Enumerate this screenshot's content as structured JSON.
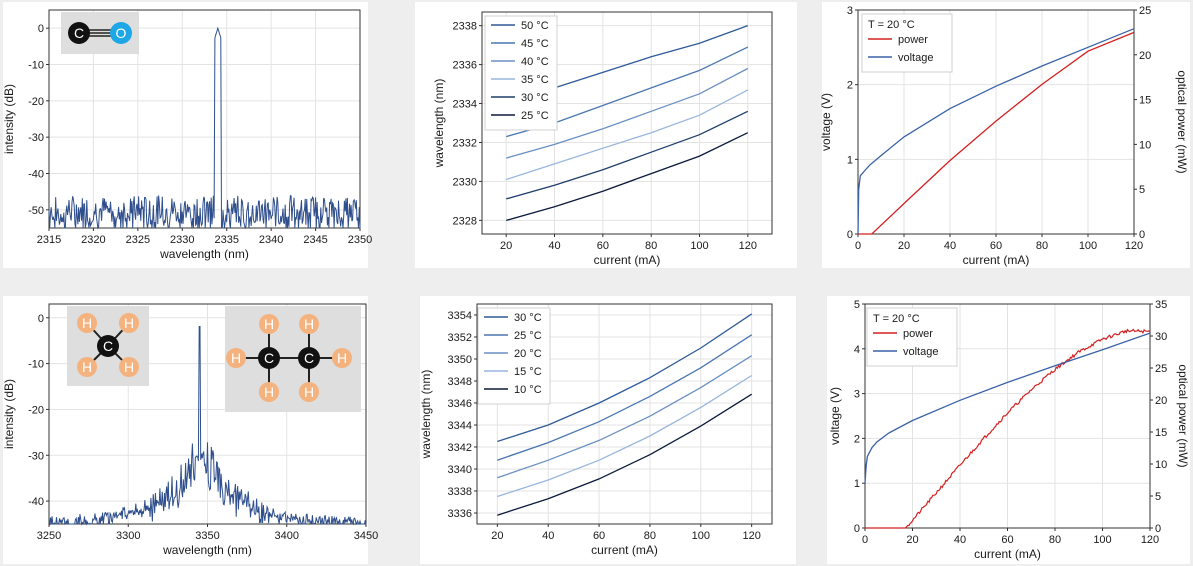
{
  "chart_data": [
    {
      "id": "co-spectrum",
      "type": "line",
      "xlabel": "wavelength (nm)",
      "ylabel": "intensity (dB)",
      "xlim": [
        2315,
        2350
      ],
      "ylim": [
        -55,
        5
      ],
      "xticks": [
        2315,
        2320,
        2325,
        2330,
        2335,
        2340,
        2345,
        2350
      ],
      "yticks": [
        0,
        -10,
        -20,
        -30,
        -40,
        -50
      ],
      "grid": true,
      "series": [
        {
          "color": "#2e4e8c",
          "noise_floor_db": -50,
          "peak_x": 2334.0,
          "peak_y": 0
        }
      ],
      "inset": {
        "molecule": "CO",
        "atoms": [
          {
            "label": "C",
            "color": "#111111"
          },
          {
            "label": "O",
            "color": "#1ea7e6"
          }
        ],
        "bond": "triple"
      }
    },
    {
      "id": "co-tuning",
      "type": "line",
      "xlabel": "current (mA)",
      "ylabel": "wavelength (nm)",
      "xlim": [
        10,
        130
      ],
      "ylim": [
        2327.3,
        2338.7
      ],
      "xticks": [
        20,
        40,
        60,
        80,
        100,
        120
      ],
      "yticks": [
        2328,
        2330,
        2332,
        2334,
        2336,
        2338
      ],
      "grid": true,
      "legend": "top-left",
      "x": [
        20,
        40,
        60,
        80,
        100,
        120
      ],
      "series": [
        {
          "name": "50 °C",
          "color": "#2e5a98",
          "values": [
            2333.9,
            2334.8,
            2335.6,
            2336.4,
            2337.1,
            2338.0
          ]
        },
        {
          "name": "45 °C",
          "color": "#4a76b0",
          "values": [
            2332.3,
            2333.0,
            2333.9,
            2334.8,
            2335.7,
            2336.9
          ]
        },
        {
          "name": "40 °C",
          "color": "#6a8fc4",
          "values": [
            2331.2,
            2331.9,
            2332.7,
            2333.6,
            2334.5,
            2335.8
          ]
        },
        {
          "name": "35 °C",
          "color": "#9ab6dc",
          "values": [
            2330.1,
            2330.9,
            2331.7,
            2332.5,
            2333.4,
            2334.7
          ]
        },
        {
          "name": "30 °C",
          "color": "#1e3d6c",
          "values": [
            2329.1,
            2329.8,
            2330.6,
            2331.5,
            2332.4,
            2333.6
          ]
        },
        {
          "name": "25 °C",
          "color": "#0b1a3a",
          "values": [
            2328.0,
            2328.7,
            2329.5,
            2330.4,
            2331.3,
            2332.5
          ]
        }
      ]
    },
    {
      "id": "co-liv",
      "type": "line",
      "xlabel": "current (mA)",
      "ylabel": "voltage (V)",
      "y2label": "optical power (mW)",
      "xlim": [
        0,
        120
      ],
      "ylim": [
        0,
        3
      ],
      "y2lim": [
        0,
        25
      ],
      "xticks": [
        0,
        20,
        40,
        60,
        80,
        100,
        120
      ],
      "yticks": [
        0,
        1,
        2,
        3
      ],
      "y2ticks": [
        0,
        5,
        10,
        15,
        20,
        25
      ],
      "grid": true,
      "legend": "top-left",
      "legend_title": "T = 20 °C",
      "series": [
        {
          "name": "power",
          "color": "#d42020",
          "axis": "right",
          "x": [
            0,
            6,
            20,
            40,
            60,
            80,
            100,
            120
          ],
          "values": [
            0,
            0,
            3.4,
            8.2,
            12.6,
            16.7,
            20.4,
            22.5
          ]
        },
        {
          "name": "voltage",
          "color": "#3a62a8",
          "axis": "left",
          "x": [
            0,
            0.3,
            1,
            3,
            5,
            10,
            20,
            40,
            60,
            80,
            100,
            120
          ],
          "values": [
            0,
            0.6,
            0.78,
            0.85,
            0.92,
            1.05,
            1.3,
            1.68,
            1.98,
            2.25,
            2.5,
            2.75
          ]
        }
      ]
    },
    {
      "id": "ch-spectrum",
      "type": "line",
      "xlabel": "wavelength (nm)",
      "ylabel": "intensity (dB)",
      "xlim": [
        3250,
        3450
      ],
      "ylim": [
        -45,
        3
      ],
      "xticks": [
        3250,
        3300,
        3350,
        3400,
        3450
      ],
      "yticks": [
        0,
        -10,
        -20,
        -30,
        -40
      ],
      "grid": true,
      "series": [
        {
          "color": "#2e4e8c",
          "noise_floor_db": -45,
          "peak_x": 3345,
          "peak_y": 0
        }
      ],
      "insets": [
        {
          "molecule": "CH4",
          "atoms": [
            {
              "label": "C",
              "color": "#111111"
            },
            {
              "label": "H",
              "color": "#f4b27e"
            },
            {
              "label": "H",
              "color": "#f4b27e"
            },
            {
              "label": "H",
              "color": "#f4b27e"
            },
            {
              "label": "H",
              "color": "#f4b27e"
            }
          ]
        },
        {
          "molecule": "C2H6",
          "atoms": [
            {
              "label": "C",
              "color": "#111111"
            },
            {
              "label": "C",
              "color": "#111111"
            },
            {
              "label": "H",
              "color": "#f4b27e"
            },
            {
              "label": "H",
              "color": "#f4b27e"
            },
            {
              "label": "H",
              "color": "#f4b27e"
            },
            {
              "label": "H",
              "color": "#f4b27e"
            },
            {
              "label": "H",
              "color": "#f4b27e"
            },
            {
              "label": "H",
              "color": "#f4b27e"
            }
          ]
        }
      ]
    },
    {
      "id": "ch-tuning",
      "type": "line",
      "xlabel": "current (mA)",
      "ylabel": "wavelength (nm)",
      "xlim": [
        12,
        128
      ],
      "ylim": [
        3335,
        3355
      ],
      "xticks": [
        20,
        40,
        60,
        80,
        100,
        120
      ],
      "yticks": [
        3336,
        3338,
        3340,
        3342,
        3344,
        3346,
        3348,
        3350,
        3352,
        3354
      ],
      "grid": true,
      "legend": "top-left",
      "x": [
        20,
        40,
        60,
        80,
        100,
        120
      ],
      "series": [
        {
          "name": "30 °C",
          "color": "#2e5a98",
          "values": [
            3342.5,
            3344.0,
            3346.0,
            3348.3,
            3351.0,
            3354.1
          ]
        },
        {
          "name": "25 °C",
          "color": "#4a76b0",
          "values": [
            3340.8,
            3342.4,
            3344.3,
            3346.6,
            3349.2,
            3352.2
          ]
        },
        {
          "name": "20 °C",
          "color": "#6a8fc4",
          "values": [
            3339.2,
            3340.8,
            3342.6,
            3344.8,
            3347.4,
            3350.3
          ]
        },
        {
          "name": "15 °C",
          "color": "#9ab6dc",
          "values": [
            3337.5,
            3339.0,
            3340.8,
            3343.0,
            3345.6,
            3348.5
          ]
        },
        {
          "name": "10 °C",
          "color": "#0b1a3a",
          "values": [
            3335.8,
            3337.3,
            3339.1,
            3341.3,
            3343.9,
            3346.8
          ]
        }
      ]
    },
    {
      "id": "ch-liv",
      "type": "line",
      "xlabel": "current (mA)",
      "ylabel": "voltage (V)",
      "y2label": "optical power (mW)",
      "xlim": [
        0,
        120
      ],
      "ylim": [
        0,
        5
      ],
      "y2lim": [
        0,
        35
      ],
      "xticks": [
        0,
        20,
        40,
        60,
        80,
        100,
        120
      ],
      "yticks": [
        0,
        1,
        2,
        3,
        4,
        5
      ],
      "y2ticks": [
        0,
        5,
        10,
        15,
        20,
        25,
        30,
        35
      ],
      "grid": true,
      "legend": "top-left",
      "legend_title": "T = 20 °C",
      "series": [
        {
          "name": "power",
          "color": "#d42020",
          "axis": "right",
          "x": [
            0,
            10,
            17,
            20,
            30,
            40,
            50,
            60,
            70,
            80,
            90,
            100,
            110,
            120
          ],
          "values": [
            0,
            0,
            0,
            1.2,
            5.5,
            9.8,
            14.0,
            18.0,
            21.6,
            24.8,
            27.5,
            29.5,
            30.8,
            30.7
          ]
        },
        {
          "name": "voltage",
          "color": "#3a62a8",
          "axis": "left",
          "x": [
            0,
            0.5,
            1,
            3,
            5,
            10,
            20,
            40,
            60,
            80,
            100,
            120
          ],
          "values": [
            1.0,
            1.4,
            1.6,
            1.8,
            1.92,
            2.12,
            2.4,
            2.85,
            3.25,
            3.62,
            3.98,
            4.35
          ]
        }
      ]
    }
  ]
}
